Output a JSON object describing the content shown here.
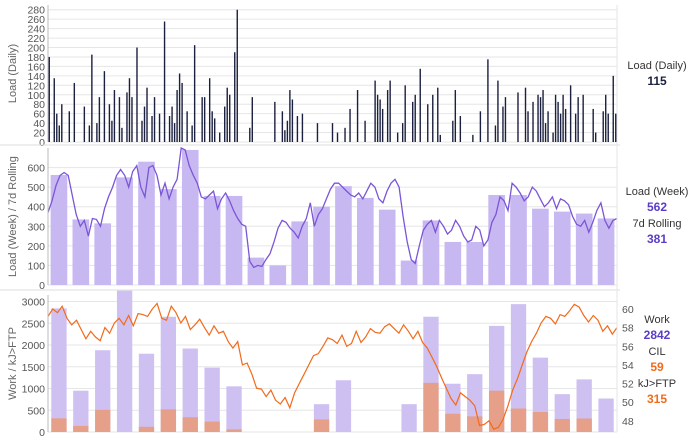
{
  "chart_data": [
    {
      "type": "bar",
      "ylabel": "Load (Daily)",
      "ylim": [
        0,
        290
      ],
      "yticks": [
        0,
        20,
        40,
        60,
        80,
        100,
        120,
        140,
        160,
        180,
        200,
        220,
        240,
        260,
        280
      ],
      "grid": true,
      "series": [
        {
          "name": "Load (Daily)",
          "color": "#1b2040",
          "values": [
            180,
            0,
            135,
            60,
            35,
            80,
            0,
            0,
            65,
            0,
            125,
            0,
            0,
            0,
            75,
            0,
            35,
            185,
            0,
            40,
            95,
            0,
            150,
            0,
            80,
            45,
            110,
            0,
            95,
            30,
            0,
            105,
            135,
            95,
            0,
            200,
            0,
            45,
            75,
            115,
            0,
            55,
            95,
            0,
            60,
            0,
            255,
            0,
            55,
            75,
            40,
            110,
            145,
            125,
            0,
            65,
            0,
            35,
            205,
            0,
            0,
            95,
            95,
            0,
            135,
            65,
            50,
            0,
            20,
            0,
            75,
            115,
            100,
            0,
            190,
            280,
            0,
            0,
            0,
            0,
            30,
            95,
            0,
            0,
            0,
            0,
            0,
            0,
            0,
            0,
            85,
            0,
            0,
            65,
            25,
            45,
            110,
            90,
            0,
            55,
            0,
            60,
            0,
            0,
            0,
            0,
            0,
            40,
            0,
            0,
            0,
            0,
            0,
            40,
            0,
            20,
            0,
            0,
            30,
            0,
            70,
            0,
            0,
            110,
            0,
            0,
            45,
            0,
            0,
            0,
            130,
            100,
            90,
            70,
            0,
            110,
            130,
            0,
            0,
            20,
            0,
            40,
            120,
            0,
            0,
            85,
            100,
            0,
            155,
            0,
            0,
            80,
            0,
            100,
            0,
            115,
            15,
            0,
            0,
            0,
            0,
            45,
            110,
            0,
            55,
            0,
            0,
            0,
            0,
            15,
            0,
            0,
            65,
            0,
            0,
            175,
            0,
            0,
            35,
            130,
            0,
            75,
            95,
            0,
            0,
            0,
            0,
            105,
            0,
            0,
            115,
            65,
            0,
            85,
            0,
            100,
            95,
            110,
            40,
            65,
            0,
            20,
            100,
            85,
            60,
            100,
            70,
            0,
            120,
            0,
            60,
            95,
            0,
            100,
            0,
            0,
            0,
            70,
            20,
            0,
            0,
            65,
            100,
            60,
            0,
            140,
            60
          ]
        }
      ]
    },
    {
      "type": "bar",
      "ylabel": "Load (Week) / 7d Rolling",
      "ylim": [
        0,
        700
      ],
      "yticks": [
        0,
        100,
        200,
        300,
        400,
        500,
        600
      ],
      "grid": true,
      "series": [
        {
          "name": "Load (Week)",
          "color": "#c8b8f2",
          "values": [
            562,
            335,
            315,
            550,
            630,
            490,
            690,
            455,
            455,
            140,
            100,
            325,
            400,
            505,
            445,
            385,
            125,
            330,
            220,
            220,
            460,
            460,
            390,
            375,
            365,
            340
          ]
        },
        {
          "name": "7d Rolling",
          "type": "line",
          "color": "#7b55d6",
          "values": [
            370,
            430,
            510,
            560,
            575,
            560,
            460,
            360,
            300,
            330,
            250,
            340,
            335,
            300,
            390,
            450,
            500,
            560,
            590,
            560,
            500,
            580,
            610,
            500,
            450,
            600,
            610,
            560,
            460,
            520,
            440,
            500,
            540,
            700,
            690,
            610,
            560,
            520,
            450,
            440,
            460,
            480,
            390,
            440,
            470,
            430,
            380,
            340,
            310,
            300,
            120,
            90,
            100,
            95,
            130,
            160,
            220,
            290,
            330,
            320,
            290,
            270,
            240,
            300,
            340,
            420,
            300,
            360,
            390,
            440,
            490,
            520,
            520,
            500,
            480,
            460,
            450,
            470,
            440,
            480,
            520,
            500,
            440,
            420,
            480,
            520,
            540,
            500,
            350,
            220,
            130,
            110,
            200,
            280,
            310,
            330,
            270,
            330,
            300,
            260,
            280,
            330,
            300,
            250,
            220,
            230,
            300,
            280,
            200,
            230,
            320,
            360,
            450,
            430,
            380,
            520,
            500,
            470,
            430,
            450,
            500,
            480,
            440,
            400,
            420,
            450,
            390,
            440,
            430,
            410,
            350,
            310,
            300,
            330,
            270,
            320,
            380,
            420,
            330,
            290,
            330,
            340
          ]
        }
      ],
      "legend": [
        {
          "label": "Load (Week)",
          "value": "562",
          "color": "#5b3cc4"
        },
        {
          "label": "7d Rolling",
          "value": "381",
          "color": "#5b3cc4"
        }
      ]
    },
    {
      "type": "bar",
      "ylabel": "Work / kJ>FTP",
      "ylim": [
        0,
        3150
      ],
      "yticks": [
        0,
        500,
        1000,
        1500,
        2000,
        2500,
        3000
      ],
      "y2lim": [
        46.8,
        61.5
      ],
      "y2ticks": [
        48,
        50,
        52,
        54,
        56,
        58,
        60
      ],
      "grid": true,
      "series": [
        {
          "name": "Work",
          "color": "#cfc0f2",
          "values": [
            2842,
            950,
            1880,
            3250,
            1800,
            2650,
            1920,
            1480,
            1050,
            0,
            0,
            0,
            640,
            1190,
            0,
            0,
            640,
            2650,
            1110,
            1330,
            2440,
            2940,
            1710,
            870,
            1210,
            770
          ]
        },
        {
          "name": "kJ>FTP",
          "color": "#e6a089",
          "values": [
            315,
            140,
            510,
            0,
            120,
            520,
            340,
            240,
            60,
            0,
            0,
            0,
            290,
            0,
            0,
            0,
            0,
            1130,
            420,
            360,
            950,
            540,
            460,
            300,
            310,
            0
          ]
        },
        {
          "name": "CIL",
          "type": "line",
          "axis": "right",
          "color": "#f26a1b",
          "values": [
            59.2,
            60,
            59.6,
            60.3,
            59,
            58.3,
            58.8,
            57.8,
            56.8,
            57.6,
            57,
            56.6,
            58,
            57.4,
            58.5,
            59,
            58.3,
            59.3,
            58.2,
            59.5,
            59.4,
            59.2,
            60,
            60.6,
            59,
            58.8,
            60.3,
            59.6,
            58.5,
            59.2,
            57.8,
            58.3,
            58.9,
            58,
            57.2,
            58.2,
            57.4,
            57.6,
            56.5,
            55.8,
            56.5,
            54,
            54.2,
            53,
            51.5,
            51.4,
            50.6,
            51.3,
            50.2,
            49.8,
            50.5,
            49.4,
            51,
            52,
            53,
            54,
            55,
            55.2,
            56,
            56.9,
            56.7,
            56.3,
            57.2,
            56,
            56.3,
            57.6,
            56.4,
            57,
            57.9,
            57.5,
            57.4,
            58.1,
            58.4,
            57.9,
            57.4,
            58.3,
            57.6,
            56.8,
            57.6,
            56.4,
            55.8,
            54.8,
            53.8,
            52.6,
            51.5,
            50.4,
            49.7,
            51,
            50.6,
            50.2,
            49.6,
            47.5,
            47.6,
            48,
            47.1,
            47.3,
            48.2,
            49.6,
            51.3,
            52.5,
            54,
            55.4,
            56.5,
            57.4,
            58.5,
            59.2,
            59,
            58.4,
            59.4,
            59.2,
            59.8,
            60.5,
            60.2,
            59.3,
            58.6,
            59.3,
            58.8,
            57.6,
            58.2,
            57.3,
            58
          ]
        }
      ],
      "legend": [
        {
          "label": "Work",
          "value": "2842",
          "color": "#5b3cc4"
        },
        {
          "label": "CIL",
          "value": "59",
          "color": "#f26a1b"
        },
        {
          "label": "kJ>FTP",
          "value": "315",
          "color": "#f26a1b"
        }
      ]
    }
  ],
  "legend_daily": {
    "label": "Load (Daily)",
    "value": "115",
    "color": "#1b2040"
  },
  "legend_week": {
    "label": "Load (Week)",
    "value": "562",
    "color": "#5b3cc4"
  },
  "legend_roll": {
    "label": "7d Rolling",
    "value": "381",
    "color": "#5b3cc4"
  },
  "legend_work": {
    "label": "Work",
    "value": "2842",
    "color": "#5b3cc4"
  },
  "legend_cil": {
    "label": "CIL",
    "value": "59",
    "color": "#f26a1b"
  },
  "legend_kj": {
    "label": "kJ>FTP",
    "value": "315",
    "color": "#f26a1b"
  }
}
